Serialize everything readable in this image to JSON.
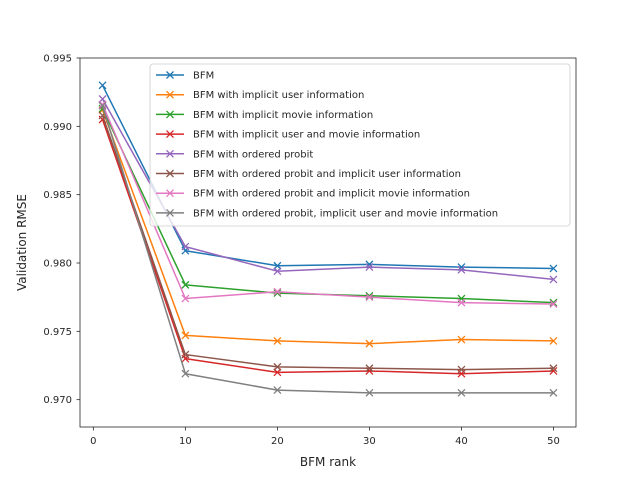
{
  "chart_data": {
    "type": "line",
    "title": "",
    "xlabel": "BFM rank",
    "ylabel": "Validation RMSE",
    "xlim": [
      -1.45,
      52.45
    ],
    "ylim": [
      0.968,
      0.995
    ],
    "x_ticks": [
      0,
      10,
      20,
      30,
      40,
      50
    ],
    "y_ticks": [
      0.97,
      0.975,
      0.98,
      0.985,
      0.99,
      0.995
    ],
    "x_tick_labels": [
      "0",
      "10",
      "20",
      "30",
      "40",
      "50"
    ],
    "y_tick_labels": [
      "0.970",
      "0.975",
      "0.980",
      "0.985",
      "0.990",
      "0.995"
    ],
    "grid": false,
    "legend_position": "top-right",
    "marker": "x",
    "x": [
      1,
      10,
      20,
      30,
      40,
      50
    ],
    "series": [
      {
        "name": "BFM",
        "color": "#1f77b4",
        "values": [
          0.993,
          0.9809,
          0.9798,
          0.9799,
          0.9797,
          0.9796
        ]
      },
      {
        "name": "BFM with implicit user information",
        "color": "#ff7f0e",
        "values": [
          0.9912,
          0.9747,
          0.9743,
          0.9741,
          0.9744,
          0.9743
        ]
      },
      {
        "name": "BFM with implicit movie information",
        "color": "#2ca02c",
        "values": [
          0.9913,
          0.9784,
          0.9778,
          0.9776,
          0.9774,
          0.9771
        ]
      },
      {
        "name": "BFM with implicit user and movie information",
        "color": "#d62728",
        "values": [
          0.9905,
          0.973,
          0.972,
          0.9721,
          0.9719,
          0.9721
        ]
      },
      {
        "name": "BFM with ordered probit",
        "color": "#9467bd",
        "values": [
          0.992,
          0.9812,
          0.9794,
          0.9797,
          0.9795,
          0.9788
        ]
      },
      {
        "name": "BFM with ordered probit and implicit user information",
        "color": "#8c564b",
        "values": [
          0.9908,
          0.9733,
          0.9724,
          0.9723,
          0.9722,
          0.9723
        ]
      },
      {
        "name": "BFM with ordered probit and implicit movie information",
        "color": "#e377c2",
        "values": [
          0.9916,
          0.9774,
          0.9779,
          0.9775,
          0.9771,
          0.977
        ]
      },
      {
        "name": "BFM with ordered probit, implicit user and movie information",
        "color": "#7f7f7f",
        "values": [
          0.9915,
          0.9719,
          0.9707,
          0.9705,
          0.9705,
          0.9705
        ]
      }
    ]
  }
}
